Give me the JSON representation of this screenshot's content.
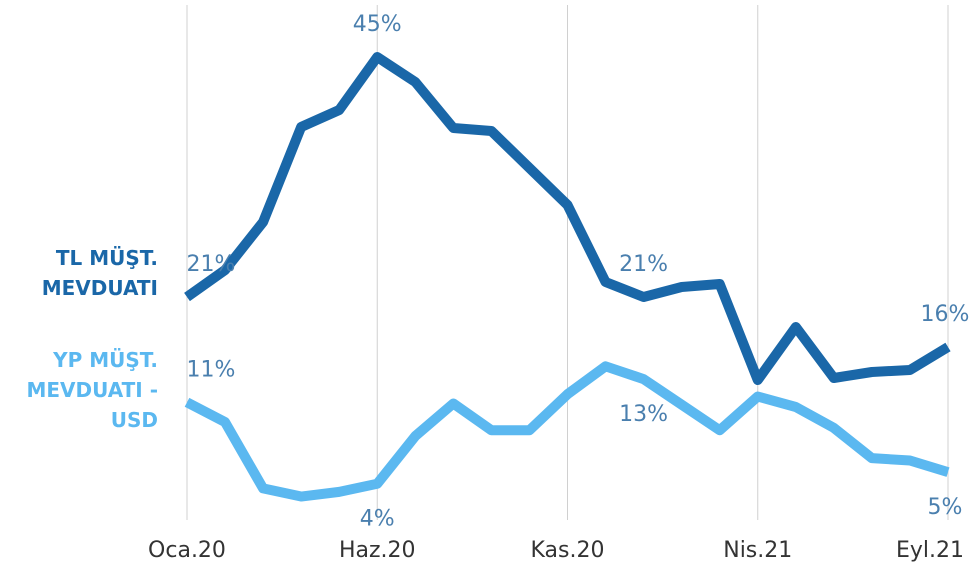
{
  "chart_data": {
    "type": "line",
    "categories": [
      "Oca.20",
      null,
      null,
      null,
      null,
      "Haz.20",
      null,
      null,
      null,
      null,
      "Kas.20",
      null,
      null,
      null,
      null,
      "Nis.21",
      null,
      null,
      null,
      null,
      "Eyl.21"
    ],
    "series": [
      {
        "name": "TL MÜŞT. MEVDUATI",
        "color": "#1a67a8",
        "values": [
          21,
          23.7,
          28.5,
          38,
          39.7,
          45,
          42.5,
          37.9,
          37.6,
          33.9,
          30.2,
          22.5,
          21,
          22,
          22.3,
          12.7,
          18,
          12.9,
          13.5,
          13.7,
          16
        ],
        "value_labels": [
          "21%",
          null,
          null,
          null,
          null,
          "45%",
          null,
          null,
          null,
          null,
          null,
          null,
          "21%",
          null,
          null,
          null,
          null,
          null,
          null,
          null,
          "16%"
        ]
      },
      {
        "name": "YP MÜŞT. MEVDUATI - USD",
        "color": "#5bb8f0",
        "axis": "y2",
        "values": [
          11,
          9.3,
          3.6,
          2.9,
          3.3,
          4,
          8.1,
          10.9,
          8.6,
          8.6,
          11.7,
          14.1,
          13,
          10.8,
          8.6,
          11.5,
          10.6,
          8.8,
          6.2,
          6,
          5
        ],
        "value_labels": [
          "11%",
          null,
          null,
          null,
          null,
          "4%",
          null,
          null,
          null,
          null,
          null,
          null,
          "13%",
          null,
          null,
          null,
          null,
          null,
          null,
          null,
          "5%"
        ]
      }
    ],
    "ylim": [
      0,
      50
    ],
    "y2lim": [
      2,
      45
    ],
    "grid": true
  }
}
